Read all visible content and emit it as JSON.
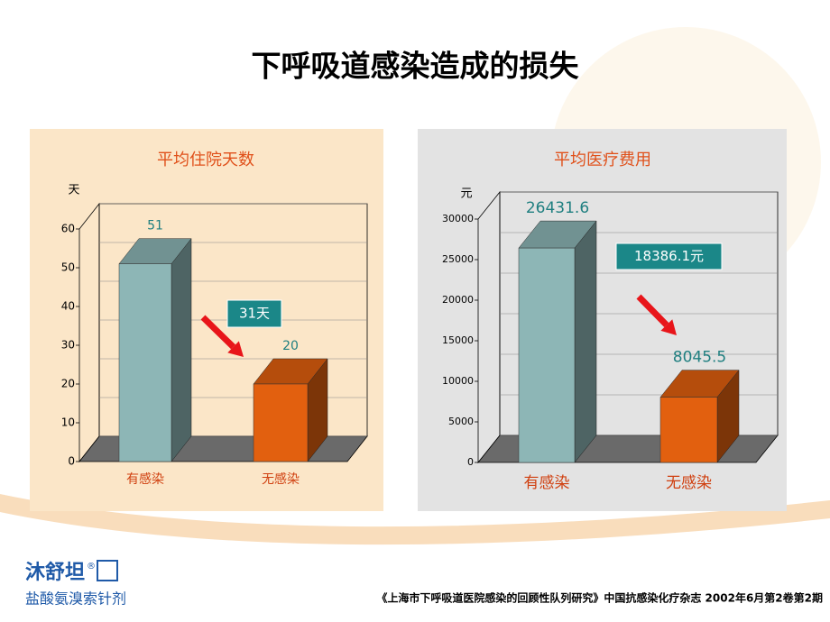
{
  "title": "下呼吸道感染造成的损失",
  "chart_data": [
    {
      "type": "bar3d",
      "title": "平均住院天数",
      "y_unit": "天",
      "categories": [
        "有感染",
        "无感染"
      ],
      "values": [
        51,
        20
      ],
      "colors": [
        "#8db6b6",
        "#e2600f"
      ],
      "background": "#fbe6c8",
      "ylim": [
        0,
        60
      ],
      "yticks": [
        0,
        10,
        20,
        30,
        40,
        50,
        60
      ],
      "annotation": "31天"
    },
    {
      "type": "bar3d",
      "title": "平均医疗费用",
      "y_unit": "元",
      "categories": [
        "有感染",
        "无感染"
      ],
      "values": [
        26431.6,
        8045.5
      ],
      "colors": [
        "#8db6b6",
        "#e2600f"
      ],
      "background": "#e3e3e3",
      "ylim": [
        0,
        30000
      ],
      "yticks": [
        0,
        5000,
        10000,
        15000,
        20000,
        25000,
        30000
      ],
      "annotation": "18386.1元"
    }
  ],
  "logo": {
    "name": "沐舒坦",
    "mark": "®",
    "subtitle": "盐酸氨溴索针剂"
  },
  "footer": "《上海市下呼吸道医院感染的回顾性队列研究》中国抗感染化疗杂志 2002年6月第2卷第2期"
}
